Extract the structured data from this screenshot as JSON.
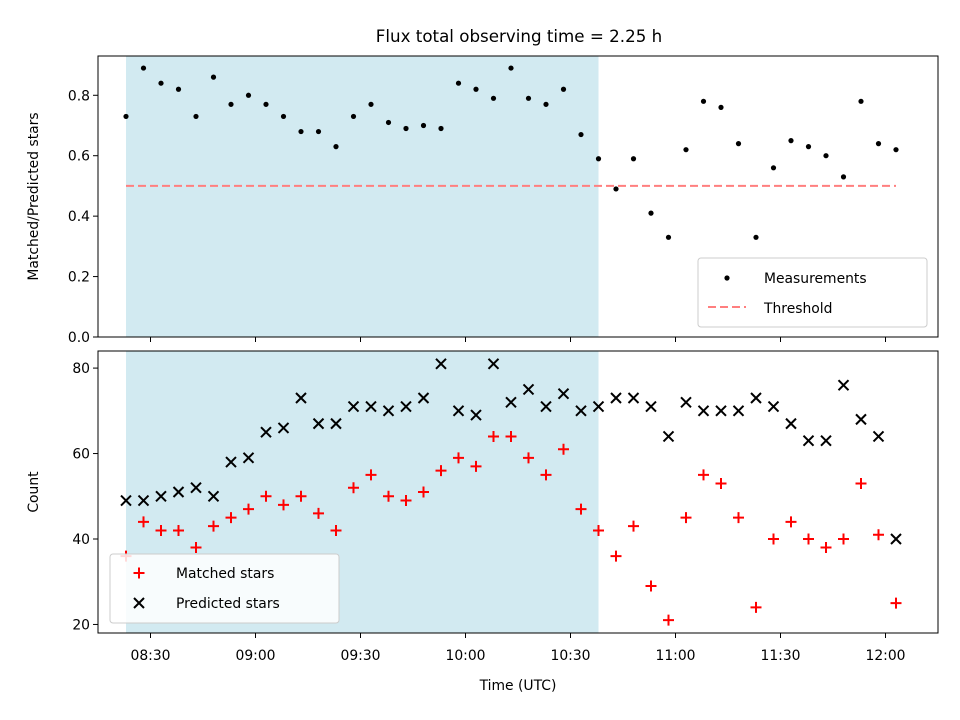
{
  "title": "Flux total observing time = 2.25 h",
  "colors": {
    "shade": "#add8e6",
    "measurement": "#000000",
    "threshold": "#ff7f7f",
    "matched": "#ff0000",
    "predicted": "#000000"
  },
  "chart_data": [
    {
      "type": "scatter",
      "title": "Flux total observing time = 2.25 h",
      "xlabel": "",
      "ylabel": "Matched/Predicted stars",
      "xlim": [
        "08:15",
        "12:15"
      ],
      "ylim": [
        0,
        0.93
      ],
      "yticks": [
        0.0,
        0.2,
        0.4,
        0.6,
        0.8
      ],
      "ytick_labels": [
        "0.0",
        "0.2",
        "0.4",
        "0.6",
        "0.8"
      ],
      "shaded_span": [
        "08:23",
        "10:38"
      ],
      "grid": false,
      "legend_position": "lower right",
      "x": [
        "08:23",
        "08:28",
        "08:33",
        "08:38",
        "08:43",
        "08:48",
        "08:53",
        "08:58",
        "09:03",
        "09:08",
        "09:13",
        "09:18",
        "09:23",
        "09:28",
        "09:33",
        "09:38",
        "09:43",
        "09:48",
        "09:53",
        "09:58",
        "10:03",
        "10:08",
        "10:13",
        "10:18",
        "10:23",
        "10:28",
        "10:33",
        "10:38",
        "10:43",
        "10:48",
        "10:53",
        "10:58",
        "11:03",
        "11:08",
        "11:13",
        "11:18",
        "11:23",
        "11:28",
        "11:33",
        "11:38",
        "11:43",
        "11:48",
        "11:53",
        "11:58",
        "12:03"
      ],
      "series": [
        {
          "name": "Measurements",
          "values": [
            0.73,
            0.89,
            0.84,
            0.82,
            0.73,
            0.86,
            0.77,
            0.8,
            0.77,
            0.73,
            0.68,
            0.68,
            0.63,
            0.73,
            0.77,
            0.71,
            0.69,
            0.7,
            0.69,
            0.84,
            0.82,
            0.79,
            0.89,
            0.79,
            0.77,
            0.82,
            0.67,
            0.59,
            0.49,
            0.59,
            0.41,
            0.33,
            0.62,
            0.78,
            0.76,
            0.64,
            0.33,
            0.56,
            0.65,
            0.63,
            0.6,
            0.53,
            0.78,
            0.64,
            0.62
          ]
        }
      ],
      "threshold": {
        "name": "Threshold",
        "value": 0.5,
        "x_range": [
          "08:23",
          "12:03"
        ]
      }
    },
    {
      "type": "scatter",
      "title": "",
      "xlabel": "Time (UTC)",
      "ylabel": "Count",
      "xlim": [
        "08:15",
        "12:15"
      ],
      "ylim": [
        18,
        84
      ],
      "xticks": [
        "08:30",
        "09:00",
        "09:30",
        "10:00",
        "10:30",
        "11:00",
        "11:30",
        "12:00"
      ],
      "yticks": [
        20,
        40,
        60,
        80
      ],
      "ytick_labels": [
        "20",
        "40",
        "60",
        "80"
      ],
      "shaded_span": [
        "08:23",
        "10:38"
      ],
      "grid": false,
      "legend_position": "lower left",
      "x": [
        "08:23",
        "08:28",
        "08:33",
        "08:38",
        "08:43",
        "08:48",
        "08:53",
        "08:58",
        "09:03",
        "09:08",
        "09:13",
        "09:18",
        "09:23",
        "09:28",
        "09:33",
        "09:38",
        "09:43",
        "09:48",
        "09:53",
        "09:58",
        "10:03",
        "10:08",
        "10:13",
        "10:18",
        "10:23",
        "10:28",
        "10:33",
        "10:38",
        "10:43",
        "10:48",
        "10:53",
        "10:58",
        "11:03",
        "11:08",
        "11:13",
        "11:18",
        "11:23",
        "11:28",
        "11:33",
        "11:38",
        "11:43",
        "11:48",
        "11:53",
        "11:58",
        "12:03"
      ],
      "series": [
        {
          "name": "Matched stars",
          "values": [
            36,
            44,
            42,
            42,
            38,
            43,
            45,
            47,
            50,
            48,
            50,
            46,
            42,
            52,
            55,
            50,
            49,
            51,
            56,
            59,
            57,
            64,
            64,
            59,
            55,
            61,
            47,
            42,
            36,
            43,
            29,
            21,
            45,
            55,
            53,
            45,
            24,
            40,
            44,
            40,
            38,
            40,
            53,
            41,
            25
          ]
        },
        {
          "name": "Predicted stars",
          "values": [
            49,
            49,
            50,
            51,
            52,
            50,
            58,
            59,
            65,
            66,
            73,
            67,
            67,
            71,
            71,
            70,
            71,
            73,
            81,
            70,
            69,
            81,
            72,
            75,
            71,
            74,
            70,
            71,
            73,
            73,
            71,
            64,
            72,
            70,
            70,
            70,
            73,
            71,
            67,
            63,
            63,
            76,
            68,
            64,
            40
          ]
        }
      ]
    }
  ]
}
